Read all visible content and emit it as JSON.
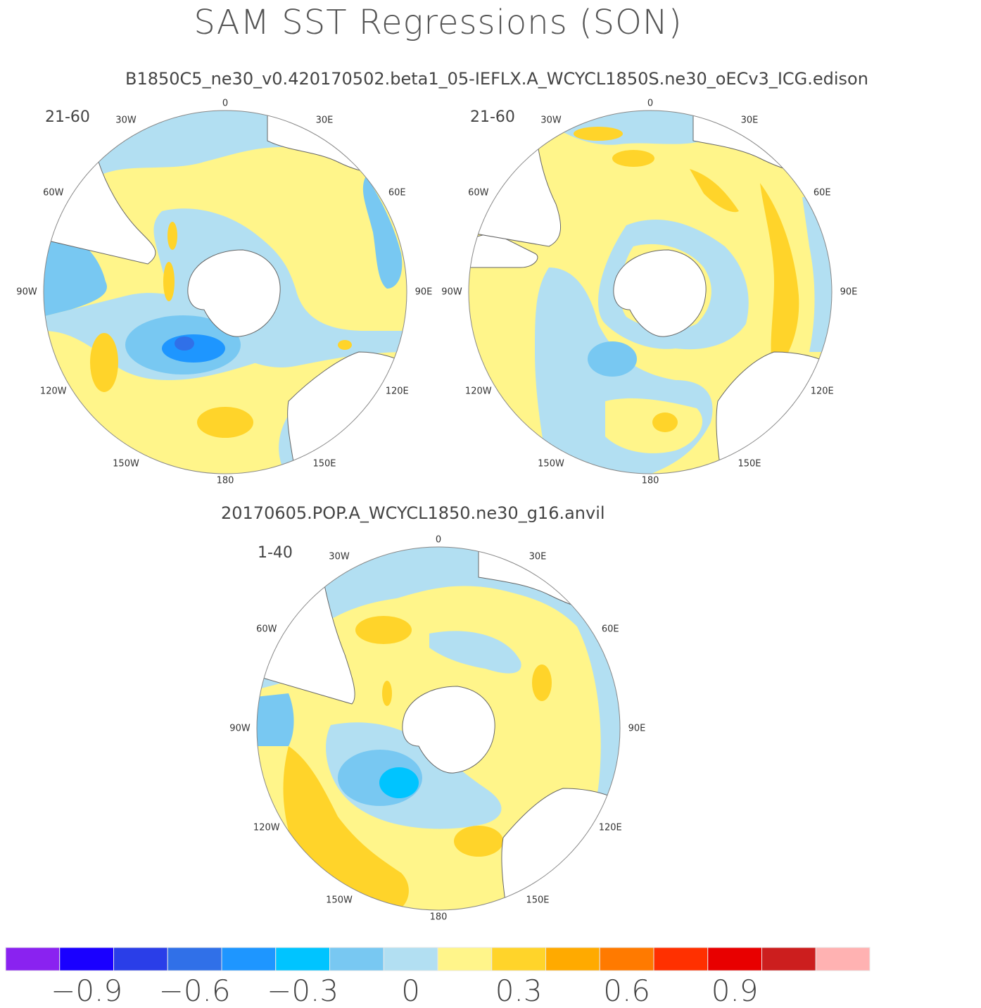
{
  "title": "SAM SST Regressions (SON)",
  "runs": {
    "top": "B1850C5_ne30_v0.420170502.beta1_05-IEFLX.A_WCYCL1850S.ne30_oECv3_ICG.edison",
    "bottom": "20170605.POP.A_WCYCL1850.ne30_g16.anvil"
  },
  "panels": [
    {
      "id": "p1",
      "period": "21-60"
    },
    {
      "id": "p2",
      "period": "21-60"
    },
    {
      "id": "p3",
      "period": "1-40"
    }
  ],
  "longitude_labels": [
    "0",
    "30E",
    "60E",
    "90E",
    "120E",
    "150E",
    "180",
    "150W",
    "120W",
    "90W",
    "60W",
    "30W"
  ],
  "colorbar": {
    "colors": [
      "#8a22f0",
      "#1a00ff",
      "#2a3ee8",
      "#3070e8",
      "#1e96ff",
      "#00c4ff",
      "#78c8f2",
      "#b2dff2",
      "#fff58a",
      "#ffd42a",
      "#ffaa00",
      "#ff7a00",
      "#ff3000",
      "#e80000",
      "#cc1e1e",
      "#ffb2b2"
    ],
    "ticks": [
      "−0.9",
      "−0.6",
      "−0.3",
      "0",
      "0.3",
      "0.6",
      "0.9"
    ]
  },
  "chart_data": [
    {
      "type": "heatmap",
      "title": "SAM SST Regressions (SON)",
      "subtitle": "B1850C5_ne30_v0.420170502.beta1_05-IEFLX.A_WCYCL1850S.ne30_oECv3_ICG.edison",
      "period": "21-60",
      "projection": "south polar stereographic",
      "levels": [
        -1.05,
        -0.9,
        -0.75,
        -0.6,
        -0.45,
        -0.3,
        -0.15,
        0,
        0.15,
        0.3,
        0.45,
        0.6,
        0.75,
        0.9,
        1.05
      ]
    },
    {
      "type": "heatmap",
      "title": "SAM SST Regressions (SON)",
      "subtitle": "B1850C5_ne30_v0.420170502.beta1_05-IEFLX.A_WCYCL1850S.ne30_oECv3_ICG.edison",
      "period": "21-60",
      "projection": "south polar stereographic",
      "levels": [
        -1.05,
        -0.9,
        -0.75,
        -0.6,
        -0.45,
        -0.3,
        -0.15,
        0,
        0.15,
        0.3,
        0.45,
        0.6,
        0.75,
        0.9,
        1.05
      ]
    },
    {
      "type": "heatmap",
      "title": "SAM SST Regressions (SON)",
      "subtitle": "20170605.POP.A_WCYCL1850.ne30_g16.anvil",
      "period": "1-40",
      "projection": "south polar stereographic",
      "levels": [
        -1.05,
        -0.9,
        -0.75,
        -0.6,
        -0.45,
        -0.3,
        -0.15,
        0,
        0.15,
        0.3,
        0.45,
        0.6,
        0.75,
        0.9,
        1.05
      ]
    }
  ]
}
